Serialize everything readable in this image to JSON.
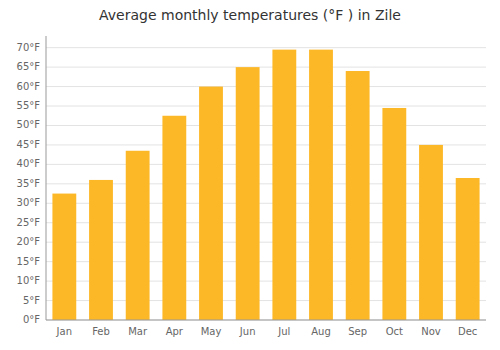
{
  "chart_data": {
    "type": "bar",
    "title": "Average monthly temperatures (°F ) in Zile",
    "categories": [
      "Jan",
      "Feb",
      "Mar",
      "Apr",
      "May",
      "Jun",
      "Jul",
      "Aug",
      "Sep",
      "Oct",
      "Nov",
      "Dec"
    ],
    "values": [
      32.5,
      36,
      43.5,
      52.5,
      60,
      65,
      69.5,
      69.5,
      64,
      54.5,
      45,
      36.5
    ],
    "color": "#FDB827",
    "ylim": [
      0,
      73
    ],
    "yticks": [
      {
        "value": 0,
        "label": "0°F"
      },
      {
        "value": 5,
        "label": "5°F"
      },
      {
        "value": 10,
        "label": "10°F"
      },
      {
        "value": 15,
        "label": "15°F"
      },
      {
        "value": 20,
        "label": "20°F"
      },
      {
        "value": 25,
        "label": "25°F"
      },
      {
        "value": 30,
        "label": "30°F"
      },
      {
        "value": 35,
        "label": "35°F"
      },
      {
        "value": 40,
        "label": "40°F"
      },
      {
        "value": 45,
        "label": "45°F"
      },
      {
        "value": 50,
        "label": "50°F"
      },
      {
        "value": 55,
        "label": "55°F"
      },
      {
        "value": 60,
        "label": "60°F"
      },
      {
        "value": 65,
        "label": "65°F"
      },
      {
        "value": 70,
        "label": "70°F"
      }
    ],
    "grid": true
  }
}
